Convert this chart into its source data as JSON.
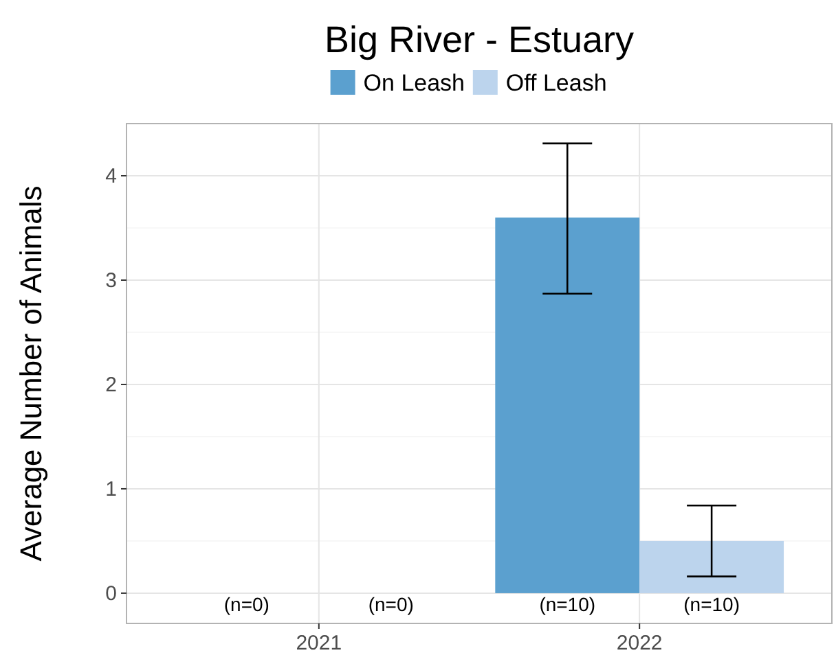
{
  "chart_data": {
    "type": "bar",
    "title": "Big River - Estuary",
    "ylabel": "Average Number of Animals",
    "categories": [
      "2021",
      "2022"
    ],
    "series": [
      {
        "name": "On Leash",
        "color": "#5ba0cf",
        "values": [
          0,
          3.6
        ],
        "errors": [
          null,
          [
            2.87,
            4.31
          ]
        ]
      },
      {
        "name": "Off Leash",
        "color": "#bcd4ed",
        "values": [
          0,
          0.5
        ],
        "errors": [
          null,
          [
            0.16,
            0.84
          ]
        ]
      }
    ],
    "annotations": [
      {
        "text": "(n=0)",
        "x": "2021",
        "y": 0
      },
      {
        "text": "(n=0)",
        "x": "2021",
        "y": 0
      },
      {
        "text": "(n=10)",
        "x": "2022",
        "y": 0
      },
      {
        "text": "(n=10)",
        "x": "2022",
        "y": 0
      }
    ],
    "ylim": [
      -0.29,
      4.5
    ],
    "yticks": [
      0,
      {
        "value": 0.5,
        "label": null
      },
      1,
      {
        "value": 1.5,
        "label": null
      },
      2,
      {
        "value": 2.5,
        "label": null
      },
      3,
      {
        "value": 3.5,
        "label": null
      },
      4,
      {
        "value": 4.5,
        "label": null
      }
    ],
    "grid": true,
    "legend": "top"
  }
}
